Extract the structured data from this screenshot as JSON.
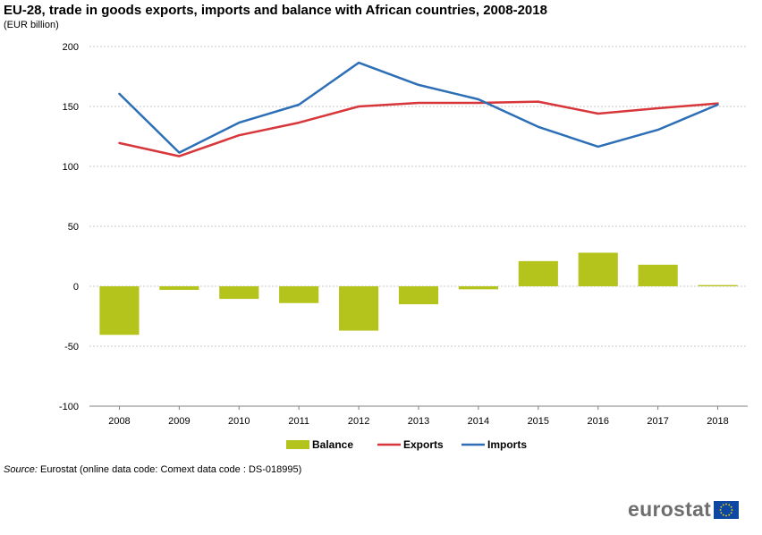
{
  "header": {
    "title": "EU-28, trade in goods exports, imports and balance with African countries, 2008-2018",
    "subtitle": "(EUR billion)"
  },
  "footer": {
    "source_label": "Source:",
    "source_text": "Eurostat (online data code: Comext data code : DS-018995)"
  },
  "logo": {
    "text": "eurostat",
    "flag_icon": "eu-flag-icon"
  },
  "colors": {
    "balance": "#b5c41c",
    "exports": "#d7373b",
    "imports": "#2d6fb6",
    "gridline": "#c8c8c8",
    "axis": "#808080"
  },
  "chart_data": {
    "type": "bar",
    "categories": [
      "2008",
      "2009",
      "2010",
      "2011",
      "2012",
      "2013",
      "2014",
      "2015",
      "2016",
      "2017",
      "2018"
    ],
    "ylim": [
      -100,
      200
    ],
    "yticks": [
      200,
      150,
      100,
      50,
      0,
      -50,
      -100
    ],
    "grid": true,
    "legend_position": "bottom",
    "series": [
      {
        "name": "Balance",
        "type": "bar",
        "color": "#b5c41c",
        "values": [
          -40.5,
          -3,
          -10.5,
          -14,
          -37,
          -15,
          -2.5,
          21,
          28,
          18,
          1
        ]
      },
      {
        "name": "Exports",
        "type": "line",
        "color": "#d7373b",
        "values": [
          119.5,
          108.5,
          126,
          136.5,
          150,
          153,
          153,
          154,
          144,
          148.5,
          152.5
        ]
      },
      {
        "name": "Imports",
        "type": "line",
        "color": "#2d6fb6",
        "values": [
          160.5,
          111.5,
          136.5,
          151.5,
          186.5,
          168,
          156,
          133,
          116.5,
          130.5,
          151.5
        ]
      }
    ]
  }
}
